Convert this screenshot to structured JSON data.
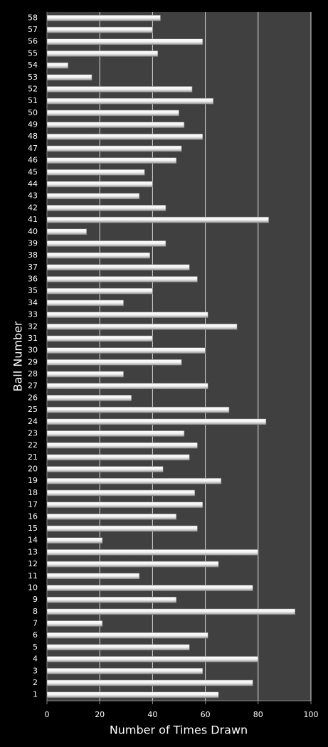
{
  "chart_data": {
    "type": "barh",
    "xlabel": "Number of Times Drawn",
    "ylabel": "Ball Number",
    "categories": [
      "1",
      "2",
      "3",
      "4",
      "5",
      "6",
      "7",
      "8",
      "9",
      "10",
      "11",
      "12",
      "13",
      "14",
      "15",
      "16",
      "17",
      "18",
      "19",
      "20",
      "21",
      "22",
      "23",
      "24",
      "25",
      "26",
      "27",
      "28",
      "29",
      "30",
      "31",
      "32",
      "33",
      "34",
      "35",
      "36",
      "37",
      "38",
      "39",
      "40",
      "41",
      "42",
      "43",
      "44",
      "45",
      "46",
      "47",
      "48",
      "49",
      "50",
      "51",
      "52",
      "53",
      "54",
      "55",
      "56",
      "57",
      "58"
    ],
    "values": [
      65,
      78,
      59,
      80,
      54,
      61,
      21,
      94,
      49,
      78,
      35,
      65,
      80,
      21,
      57,
      49,
      59,
      56,
      66,
      44,
      54,
      57,
      52,
      83,
      69,
      32,
      61,
      29,
      51,
      60,
      40,
      72,
      61,
      29,
      40,
      57,
      54,
      39,
      45,
      15,
      84,
      45,
      35,
      40,
      37,
      49,
      51,
      59,
      52,
      50,
      63,
      55,
      17,
      8,
      42,
      59,
      40,
      43
    ],
    "color": "#ffffff",
    "xlim": [
      0,
      100
    ],
    "xticks": [
      0,
      20,
      40,
      60,
      80,
      100
    ],
    "grid": true
  }
}
